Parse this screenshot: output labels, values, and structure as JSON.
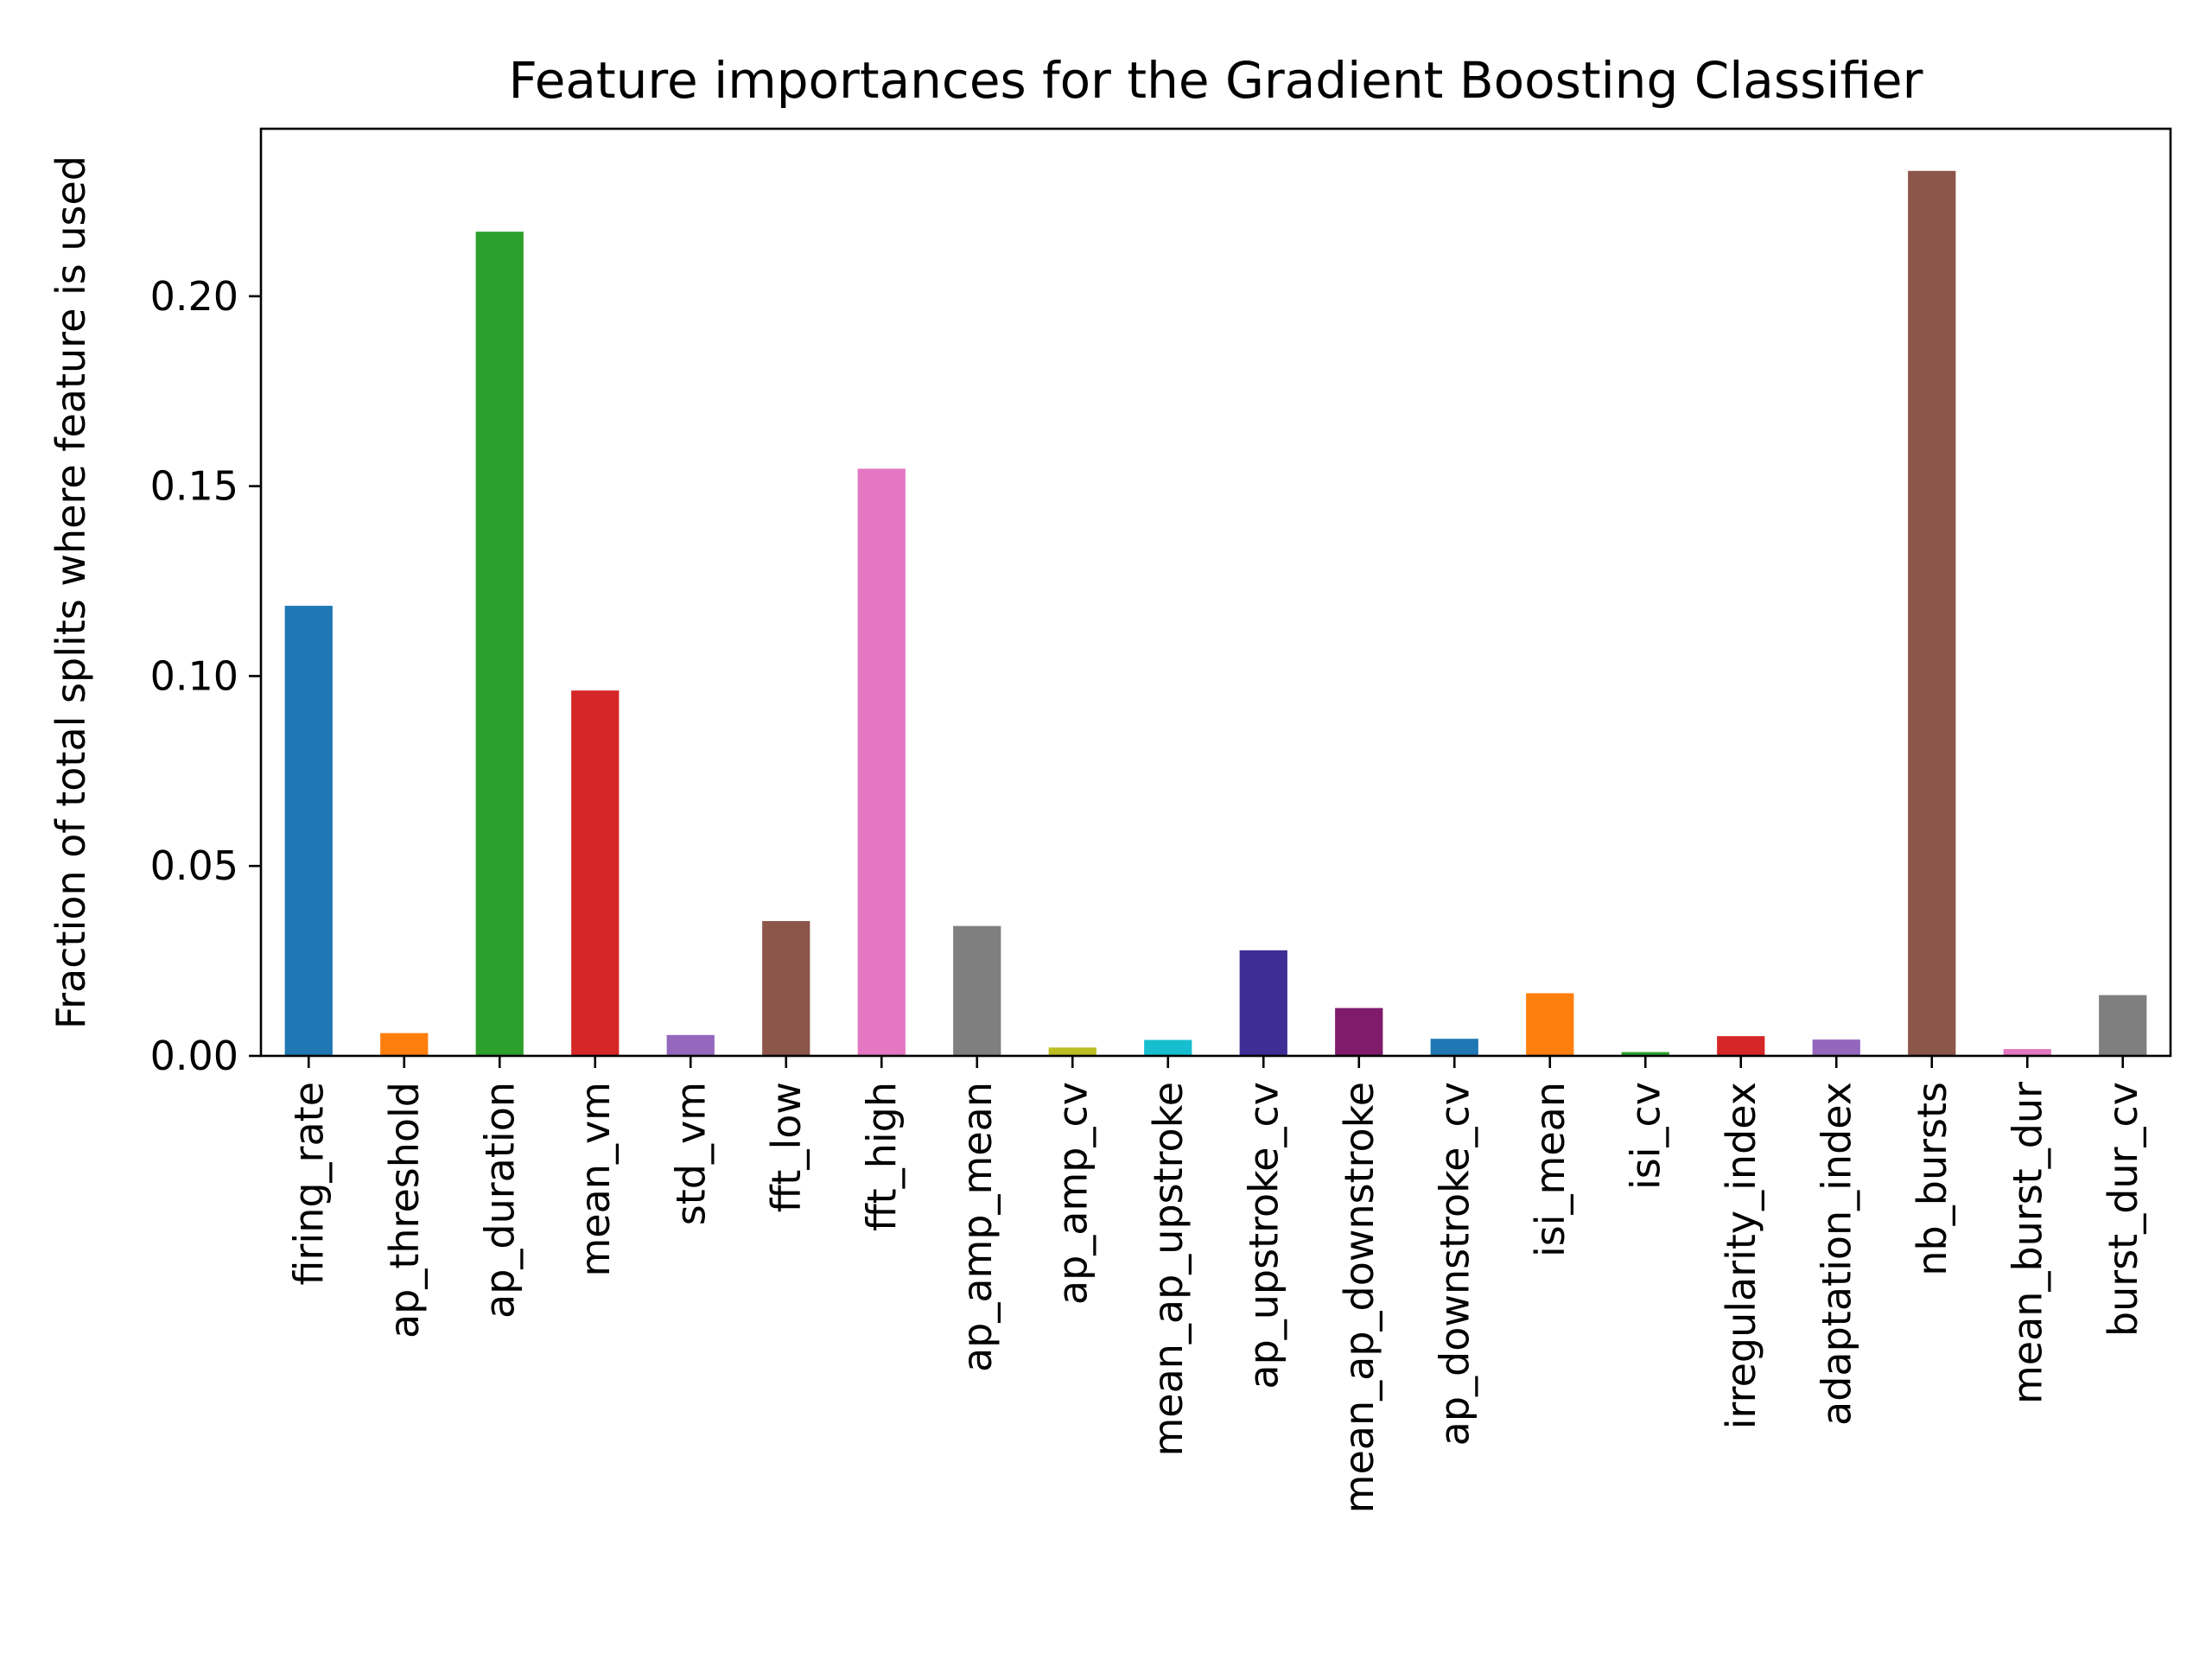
{
  "chart_data": {
    "type": "bar",
    "title": "Feature importances for the Gradient Boosting Classifier",
    "xlabel": "",
    "ylabel": "Fraction of total splits where feature is used",
    "ylim": [
      0,
      0.2441
    ],
    "yticks": [
      0.0,
      0.05,
      0.1,
      0.15,
      0.2
    ],
    "ytick_labels": [
      "0.00",
      "0.05",
      "0.10",
      "0.15",
      "0.20"
    ],
    "grid": false,
    "categories": [
      "firing_rate",
      "ap_threshold",
      "ap_duration",
      "mean_vm",
      "std_vm",
      "fft_low",
      "fft_high",
      "ap_amp_mean",
      "ap_amp_cv",
      "mean_ap_upstroke",
      "ap_upstroke_cv",
      "mean_ap_downstroke",
      "ap_downstroke_cv",
      "isi_mean",
      "isi_cv",
      "irregularity_index",
      "adaptation_index",
      "nb_bursts",
      "mean_burst_dur",
      "burst_dur_cv"
    ],
    "values": [
      0.1185,
      0.006,
      0.217,
      0.0962,
      0.0055,
      0.0355,
      0.1546,
      0.0342,
      0.0022,
      0.0042,
      0.0278,
      0.0126,
      0.0045,
      0.0165,
      0.001,
      0.0052,
      0.0043,
      0.233,
      0.0018,
      0.016
    ],
    "colors": [
      "#1f77b4",
      "#ff7f0e",
      "#2ca02c",
      "#d62728",
      "#9467bd",
      "#8c564b",
      "#e377c2",
      "#7f7f7f",
      "#bcbd22",
      "#17becf",
      "#3f2d96",
      "#7f1b6a",
      "#1f77b4",
      "#ff7f0e",
      "#2ca02c",
      "#d62728",
      "#9467bd",
      "#8c564b",
      "#e377c2",
      "#7f7f7f"
    ]
  }
}
